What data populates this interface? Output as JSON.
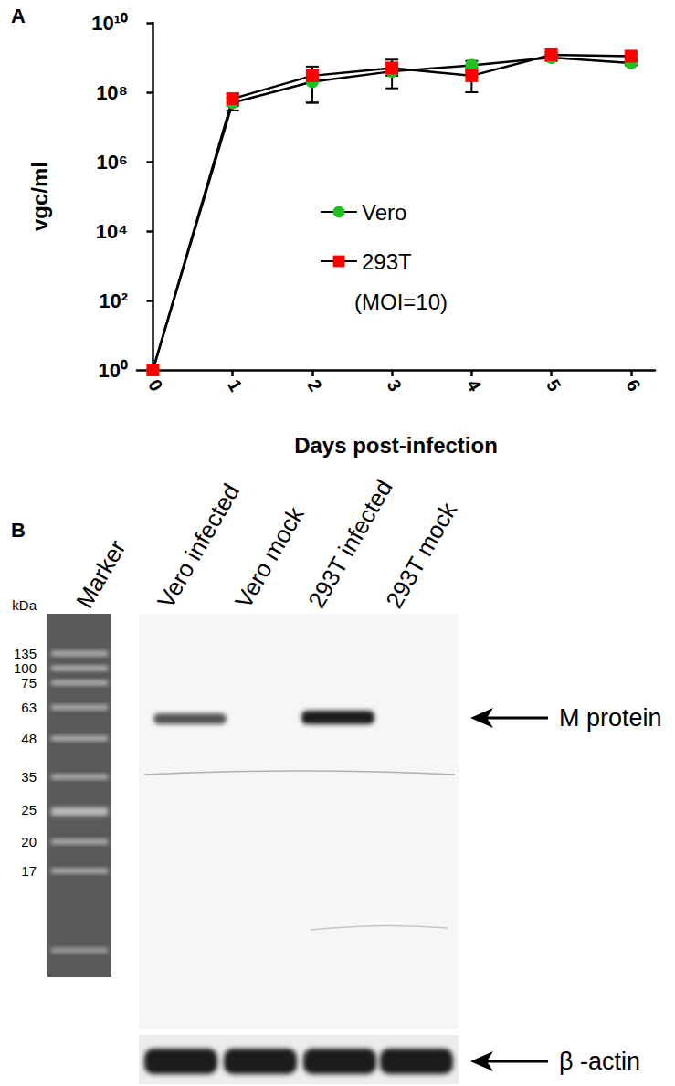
{
  "chart_data": {
    "type": "line",
    "panel_label": "A",
    "x_label": "Days post-infection",
    "y_label": "vgc/ml",
    "annotations": [
      "(MOI=10)"
    ],
    "x": [
      0,
      1,
      2,
      3,
      4,
      5,
      6
    ],
    "xlim": [
      -0.2,
      6.3
    ],
    "xticks": [
      0,
      1,
      2,
      3,
      4,
      5,
      6
    ],
    "ylim": [
      1,
      10000000000
    ],
    "yticks": [
      {
        "value": 1,
        "label": "10⁰"
      },
      {
        "value": 100,
        "label": "10²"
      },
      {
        "value": 10000,
        "label": "10⁴"
      },
      {
        "value": 1000000,
        "label": "10⁶"
      },
      {
        "value": 100000000,
        "label": "10⁸"
      },
      {
        "value": 10000000000,
        "label": "10¹⁰"
      }
    ],
    "log": "y",
    "grid": false,
    "legend": "center",
    "series": [
      {
        "name": "Vero",
        "color": "#1fc01f",
        "marker": "circle",
        "values": [
          1,
          50000000,
          200000000,
          400000000,
          600000000,
          1000000000,
          700000000
        ],
        "errors": [
          0,
          20000000,
          150000000,
          100000000,
          200000000,
          200000000,
          100000000
        ]
      },
      {
        "name": "293T",
        "color": "#ff0000",
        "marker": "square",
        "values": [
          1,
          65000000,
          300000000,
          500000000,
          300000000,
          1200000000,
          1100000000
        ],
        "errors": [
          0,
          25000000,
          250000000,
          370000000,
          200000000,
          200000000,
          200000000
        ]
      }
    ]
  },
  "blot": {
    "panel_label": "B",
    "marker_lane": "Marker",
    "unit": "kDa",
    "marker_sizes": [
      135,
      100,
      75,
      63,
      48,
      35,
      25,
      20,
      17
    ],
    "lanes": [
      {
        "label": "Vero infected",
        "m_protein": true
      },
      {
        "label": "Vero mock",
        "m_protein": false
      },
      {
        "label": "293T infected",
        "m_protein": true
      },
      {
        "label": "293T mock",
        "m_protein": false
      }
    ],
    "band_labels": [
      "M protein",
      "β -actin"
    ]
  }
}
